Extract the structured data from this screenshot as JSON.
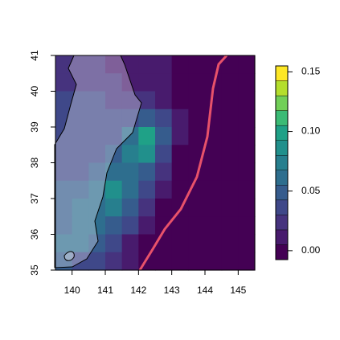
{
  "chart_data": {
    "type": "heatmap",
    "x": [
      139.75,
      140.25,
      140.75,
      141.25,
      141.75,
      142.25,
      142.75,
      143.25,
      143.75,
      144.25,
      144.75,
      145.25
    ],
    "y": [
      40.75,
      40.25,
      39.75,
      39.25,
      38.75,
      38.25,
      37.75,
      37.25,
      36.75,
      36.25,
      35.75,
      35.25
    ],
    "z": [
      [
        0.025,
        0.025,
        0.02,
        0.015,
        0.01,
        0.01,
        0.006,
        0.004,
        -0.005,
        -0.005,
        -0.005,
        -0.005
      ],
      [
        0.025,
        0.025,
        0.025,
        0.02,
        0.015,
        0.012,
        0.008,
        0.004,
        -0.005,
        -0.005,
        -0.005,
        -0.005
      ],
      [
        0.03,
        0.03,
        0.03,
        0.025,
        0.02,
        0.025,
        0.015,
        0.004,
        -0.005,
        -0.005,
        -0.005,
        -0.005
      ],
      [
        0.03,
        0.03,
        0.03,
        0.03,
        0.035,
        0.05,
        0.03,
        0.008,
        -0.005,
        -0.005,
        -0.005,
        -0.005
      ],
      [
        0.03,
        0.035,
        0.035,
        0.04,
        0.065,
        0.095,
        0.05,
        0.008,
        -0.005,
        -0.005,
        -0.005,
        -0.005
      ],
      [
        0.035,
        0.035,
        0.04,
        0.05,
        0.075,
        0.085,
        0.04,
        0.004,
        -0.005,
        -0.005,
        -0.005,
        -0.005
      ],
      [
        0.04,
        0.04,
        0.045,
        0.06,
        0.065,
        0.05,
        0.02,
        -0.005,
        -0.005,
        -0.005,
        -0.005,
        -0.005
      ],
      [
        0.045,
        0.05,
        0.06,
        0.085,
        0.06,
        0.03,
        0.008,
        -0.005,
        -0.005,
        -0.005,
        -0.005,
        -0.005
      ],
      [
        0.05,
        0.055,
        0.065,
        0.07,
        0.05,
        0.02,
        0.004,
        -0.005,
        -0.005,
        -0.005,
        -0.005,
        -0.005
      ],
      [
        0.05,
        0.06,
        0.06,
        0.05,
        0.03,
        0.01,
        -0.005,
        -0.005,
        -0.005,
        -0.005,
        -0.005,
        -0.005
      ],
      [
        0.06,
        0.065,
        0.05,
        0.03,
        0.015,
        0.004,
        -0.005,
        -0.005,
        -0.005,
        -0.005,
        -0.005,
        -0.005
      ],
      [
        0.05,
        0.04,
        0.03,
        0.02,
        0.01,
        -0.005,
        -0.005,
        -0.005,
        -0.005,
        -0.005,
        -0.005,
        -0.005
      ]
    ],
    "xlim": [
      139.5,
      145.5
    ],
    "ylim": [
      35,
      41
    ],
    "xticks": [
      140,
      141,
      142,
      143,
      144,
      145
    ],
    "yticks": [
      35,
      36,
      37,
      38,
      39,
      40,
      41
    ],
    "levels": [
      -0.0075,
      0.005,
      0.0175,
      0.03,
      0.0425,
      0.055,
      0.0675,
      0.08,
      0.0925,
      0.105,
      0.1175,
      0.13,
      0.1425,
      0.155
    ],
    "colors": [
      "#440154",
      "#481B6D",
      "#46337E",
      "#3F4889",
      "#365C8D",
      "#2E6E8E",
      "#277F8E",
      "#21908C",
      "#1FA187",
      "#3BBB75",
      "#71CF57",
      "#B4DE2C",
      "#FDE725"
    ],
    "colorbar_ticks": [
      {
        "value": 0,
        "label": "0.00"
      },
      {
        "value": 0.05,
        "label": "0.05"
      },
      {
        "value": 0.1,
        "label": "0.10"
      },
      {
        "value": 0.15,
        "label": "0.15"
      }
    ]
  }
}
